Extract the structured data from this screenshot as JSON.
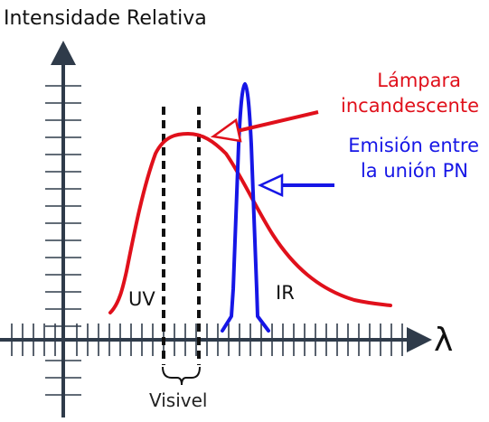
{
  "axis": {
    "y_label": "Intensidade Relativa",
    "x_label": "λ"
  },
  "regions": {
    "uv_label": "UV",
    "ir_label": "IR",
    "visible_label": "Visivel"
  },
  "annotations": {
    "lamp_line1": "Lámpara",
    "lamp_line2": "incandescente",
    "led_line1": "Emisión entre",
    "led_line2": "la unión PN"
  },
  "colors": {
    "axis": "#2f3b4a",
    "lamp": "#e0101b",
    "led": "#1616e6",
    "text": "#111111"
  }
}
